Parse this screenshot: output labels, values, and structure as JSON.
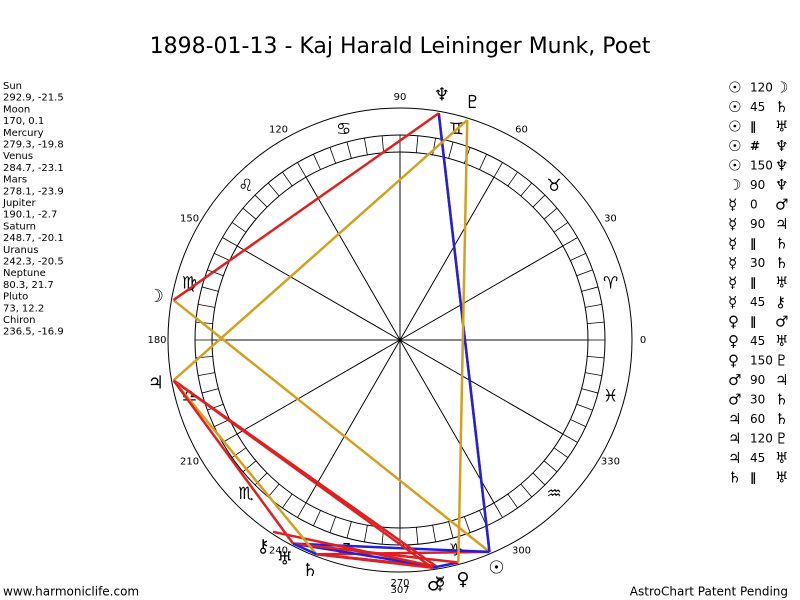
{
  "header": {
    "title": "1898-01-13 - Kaj Harald Leininger Munk, Poet"
  },
  "planets": [
    {
      "name": "Sun",
      "glyph": "☉",
      "longitude": 292.9,
      "latitude": -21.5
    },
    {
      "name": "Moon",
      "glyph": "☽",
      "longitude": 170.0,
      "latitude": 0.1
    },
    {
      "name": "Mercury",
      "glyph": "☿",
      "longitude": 279.3,
      "latitude": -19.8
    },
    {
      "name": "Venus",
      "glyph": "♀",
      "longitude": 284.7,
      "latitude": -23.1
    },
    {
      "name": "Mars",
      "glyph": "♂",
      "longitude": 278.1,
      "latitude": -23.9
    },
    {
      "name": "Jupiter",
      "glyph": "♃",
      "longitude": 190.1,
      "latitude": -2.7
    },
    {
      "name": "Saturn",
      "glyph": "♄",
      "longitude": 248.7,
      "latitude": -20.1
    },
    {
      "name": "Uranus",
      "glyph": "♅",
      "longitude": 242.3,
      "latitude": -20.5
    },
    {
      "name": "Neptune",
      "glyph": "♆",
      "longitude": 80.3,
      "latitude": 21.7
    },
    {
      "name": "Pluto",
      "glyph": "♇",
      "longitude": 73.0,
      "latitude": 12.2
    },
    {
      "name": "Chiron",
      "glyph": "⚷",
      "longitude": 236.5,
      "latitude": -16.9
    }
  ],
  "wheel": {
    "angle_labels": [
      0,
      30,
      60,
      90,
      120,
      150,
      180,
      210,
      240,
      270,
      300,
      330
    ],
    "marker": 307,
    "signs": [
      "♈",
      "♉",
      "♊",
      "♋",
      "♌",
      "♍",
      "♎",
      "♏",
      "♐",
      "♑",
      "♒",
      "♓"
    ]
  },
  "aspects": [
    {
      "from": "☉",
      "aspect": 120,
      "to": "☽",
      "color": "#d4a020"
    },
    {
      "from": "☉",
      "aspect": 45,
      "to": "♄",
      "color": "#e02020"
    },
    {
      "from": "☉",
      "aspect": "∥",
      "to": "♅",
      "color": "#2020e0"
    },
    {
      "from": "☉",
      "aspect": "#",
      "to": "♆",
      "color": "#e02020"
    },
    {
      "from": "☉",
      "aspect": 150,
      "to": "♆",
      "color": "#2020e0"
    },
    {
      "from": "☽",
      "aspect": 90,
      "to": "♆",
      "color": "#e02020"
    },
    {
      "from": "☿",
      "aspect": 0,
      "to": "♂",
      "color": "#e02020"
    },
    {
      "from": "☿",
      "aspect": 90,
      "to": "♃",
      "color": "#e02020"
    },
    {
      "from": "☿",
      "aspect": "∥",
      "to": "♄",
      "color": "#2020e0"
    },
    {
      "from": "☿",
      "aspect": 30,
      "to": "♄",
      "color": "#e02020"
    },
    {
      "from": "☿",
      "aspect": "∥",
      "to": "♅",
      "color": "#2020e0"
    },
    {
      "from": "☿",
      "aspect": 45,
      "to": "⚷",
      "color": "#e02020"
    },
    {
      "from": "♀",
      "aspect": "∥",
      "to": "♂",
      "color": "#2020e0"
    },
    {
      "from": "♀",
      "aspect": 45,
      "to": "♅",
      "color": "#e02020"
    },
    {
      "from": "♀",
      "aspect": 150,
      "to": "♇",
      "color": "#d4a020"
    },
    {
      "from": "♂",
      "aspect": 90,
      "to": "♃",
      "color": "#e02020"
    },
    {
      "from": "♂",
      "aspect": 30,
      "to": "♄",
      "color": "#e02020"
    },
    {
      "from": "♃",
      "aspect": 60,
      "to": "♄",
      "color": "#d4a020"
    },
    {
      "from": "♃",
      "aspect": 120,
      "to": "♇",
      "color": "#d4a020"
    },
    {
      "from": "♃",
      "aspect": 45,
      "to": "♅",
      "color": "#e02020"
    },
    {
      "from": "♄",
      "aspect": "∥",
      "to": "♅",
      "color": "#2020e0"
    }
  ],
  "footer": {
    "left": "www.harmoniclife.com",
    "right": "AstroChart Patent Pending"
  }
}
